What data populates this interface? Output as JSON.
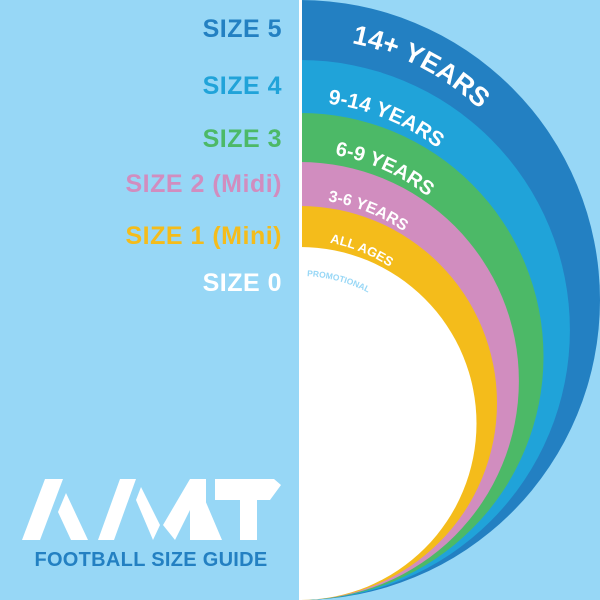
{
  "colors": {
    "background": "#97d7f6",
    "size5": "#2380c2",
    "size4": "#20a3d9",
    "size3": "#4cb967",
    "size2": "#d18dbf",
    "size1": "#f4bc1b",
    "size0": "#ffffff",
    "promotional_text": "#97d7f6"
  },
  "sizes": [
    {
      "label": "SIZE 5",
      "ages": "14+ YEARS"
    },
    {
      "label": "SIZE 4",
      "ages": "9-14 YEARS"
    },
    {
      "label": "SIZE 3",
      "ages": "6-9 YEARS"
    },
    {
      "label": "SIZE 2 (Midi)",
      "ages": "3-6 YEARS"
    },
    {
      "label": "SIZE 1 (Mini)",
      "ages": "ALL AGES"
    },
    {
      "label": "SIZE 0",
      "ages": "PROMOTIONAL"
    }
  ],
  "logo": {
    "lettering": "AMT"
  },
  "subtitle": "FOOTBALL SIZE GUIDE"
}
